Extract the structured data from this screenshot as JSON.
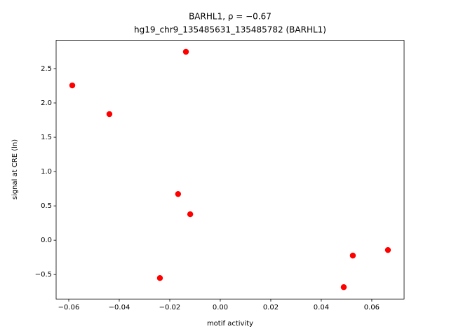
{
  "chart_data": {
    "type": "scatter",
    "title": "BARHL1, ρ = −0.67",
    "subtitle": "hg19_chr9_135485631_135485782 (BARHL1)",
    "xlabel": "motif activity",
    "ylabel": "signal at CRE (ln)",
    "color": "#ff0000",
    "x": [
      -0.0136,
      -0.0586,
      -0.0439,
      -0.0167,
      -0.0119,
      -0.0239,
      0.0489,
      0.0525,
      0.0664
    ],
    "y": [
      2.745,
      2.255,
      1.837,
      0.673,
      0.378,
      -0.551,
      -0.684,
      -0.224,
      -0.143
    ],
    "xlim": [
      -0.065,
      0.0728
    ],
    "ylim": [
      -0.857,
      2.912
    ],
    "xticks": [
      {
        "value": -0.06,
        "label": "−0.06"
      },
      {
        "value": -0.04,
        "label": "−0.04"
      },
      {
        "value": -0.02,
        "label": "−0.02"
      },
      {
        "value": 0,
        "label": "0.00"
      },
      {
        "value": 0.02,
        "label": "0.02"
      },
      {
        "value": 0.04,
        "label": "0.04"
      },
      {
        "value": 0.06,
        "label": "0.06"
      }
    ],
    "yticks": [
      {
        "value": -0.5,
        "label": "−0.5"
      },
      {
        "value": 0,
        "label": "0.0"
      },
      0.5,
      {
        "value": 1,
        "label": "1.0"
      },
      1.5,
      {
        "value": 2,
        "label": "2.0"
      },
      2.5
    ]
  }
}
